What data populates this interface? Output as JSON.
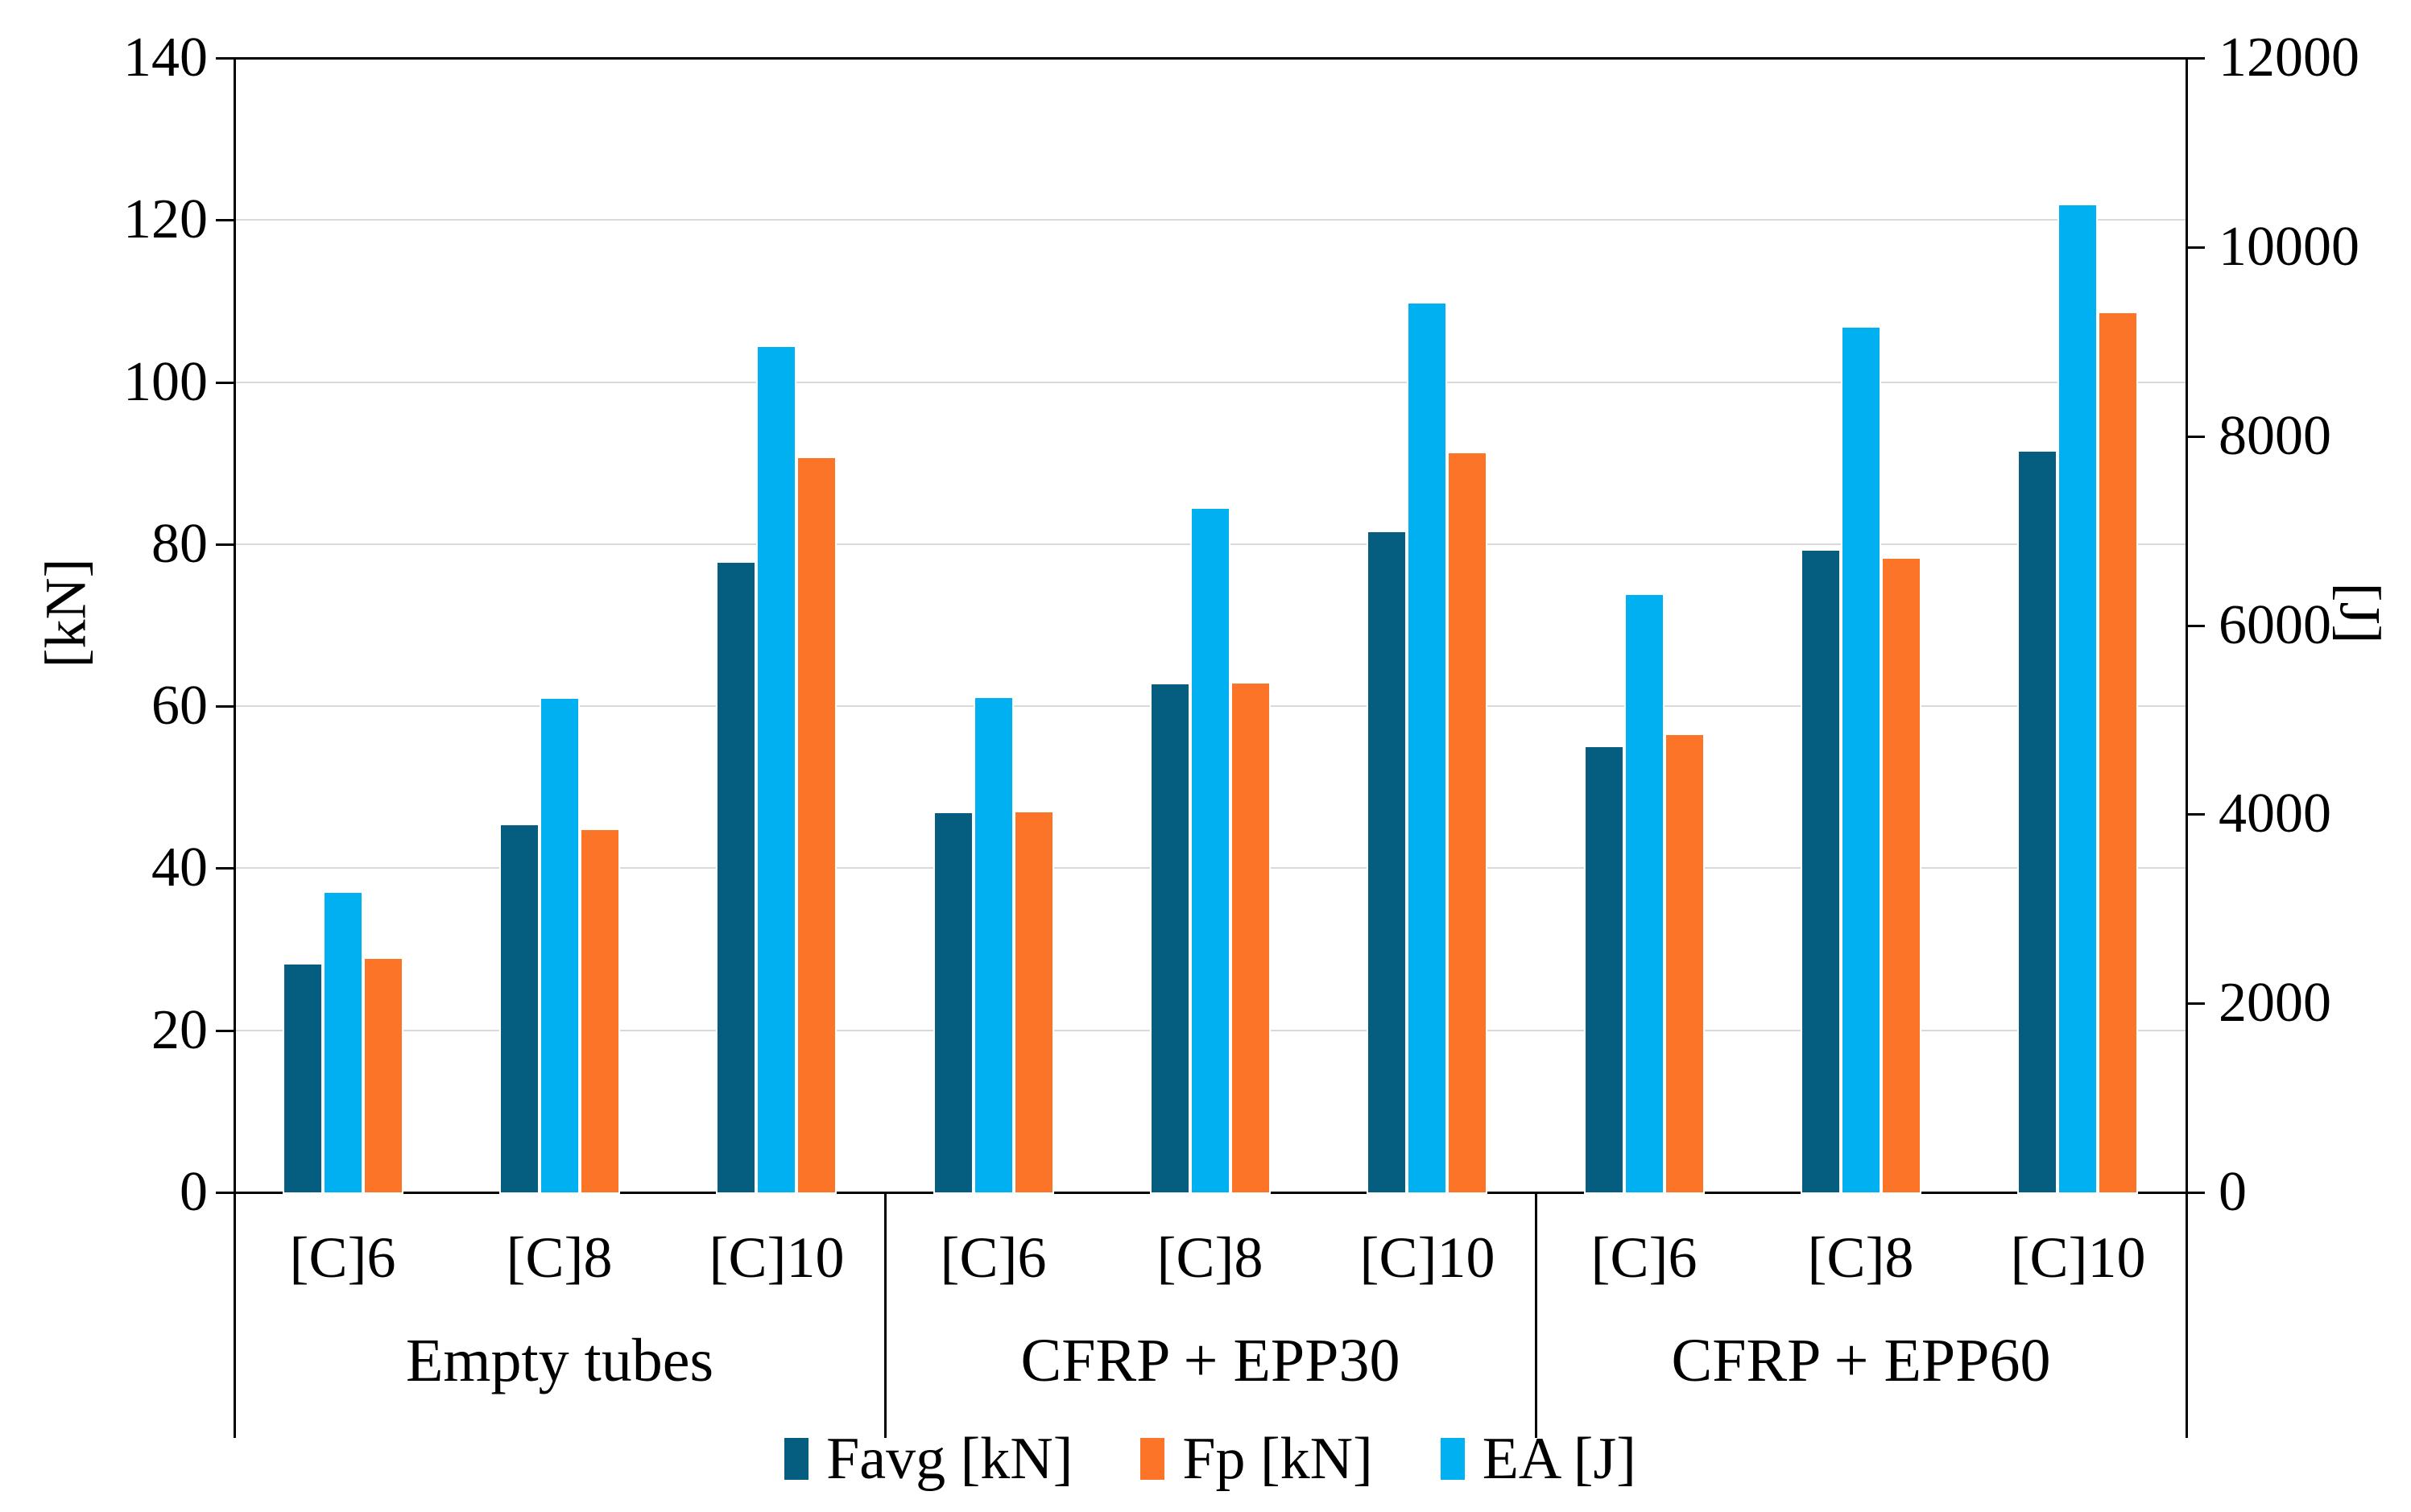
{
  "chart_data": {
    "type": "bar",
    "title": "",
    "group_labels": [
      "Empty tubes",
      "CFRP + EPP30",
      "CFRP + EPP60"
    ],
    "categories_per_group": [
      "[C]6",
      "[C]8",
      "[C]10"
    ],
    "series": [
      {
        "id": "favg",
        "name": "Favg [kN]",
        "axis": "left",
        "color": "#055e7f",
        "values": [
          [
            28.1,
            45.3,
            77.7
          ],
          [
            46.8,
            62.7,
            81.5
          ],
          [
            54.9,
            79.2,
            91.4
          ]
        ]
      },
      {
        "id": "fp",
        "name": "Fp [kN]",
        "axis": "left",
        "color": "#fb7428",
        "values": [
          [
            28.8,
            44.7,
            90.6
          ],
          [
            46.9,
            62.8,
            91.2
          ],
          [
            56.4,
            78.2,
            108.5
          ]
        ]
      },
      {
        "id": "ea",
        "name": "EA [J]",
        "axis": "right",
        "color": "#00b0f0",
        "values": [
          [
            3170,
            5220,
            8940
          ],
          [
            5230,
            7230,
            9400
          ],
          [
            6320,
            9150,
            10440
          ]
        ]
      }
    ],
    "bar_order": [
      "favg",
      "ea",
      "fp"
    ],
    "left_axis": {
      "label": "[kN]",
      "min": 0,
      "max": 140,
      "step": 20
    },
    "right_axis": {
      "label": "[J]",
      "min": 0,
      "max": 12000,
      "step": 2000
    },
    "grid": true,
    "gridline_color": "#d9d9d9",
    "legend_position": "bottom"
  }
}
